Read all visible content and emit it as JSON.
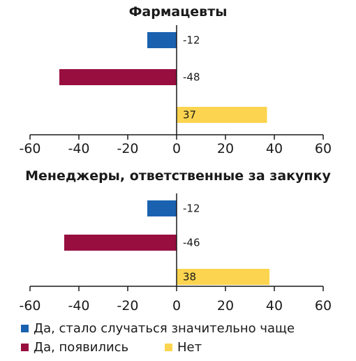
{
  "chart_data": [
    {
      "type": "bar",
      "orientation": "horizontal",
      "title": "Фармацевты",
      "categories": [
        "Да, стало случаться значительно чаще",
        "Да, появились",
        "Нет"
      ],
      "values": [
        -12,
        -48,
        37
      ],
      "xlim": [
        -60,
        60
      ],
      "xticks": [
        -60,
        -40,
        -20,
        0,
        20,
        40,
        60
      ],
      "grid": false
    },
    {
      "type": "bar",
      "orientation": "horizontal",
      "title": "Менеджеры, ответственные за закупку",
      "categories": [
        "Да, стало случаться значительно чаще",
        "Да, появились",
        "Нет"
      ],
      "values": [
        -12,
        -46,
        38
      ],
      "xlim": [
        -60,
        60
      ],
      "xticks": [
        -60,
        -40,
        -20,
        0,
        20,
        40,
        60
      ],
      "grid": false
    }
  ],
  "legend": {
    "items": [
      {
        "label": "Да, стало случаться значительно чаще",
        "color": "#1a62b0"
      },
      {
        "label": "Да, появились",
        "color": "#980e3f"
      },
      {
        "label": "Нет",
        "color": "#fcd44f"
      }
    ]
  }
}
